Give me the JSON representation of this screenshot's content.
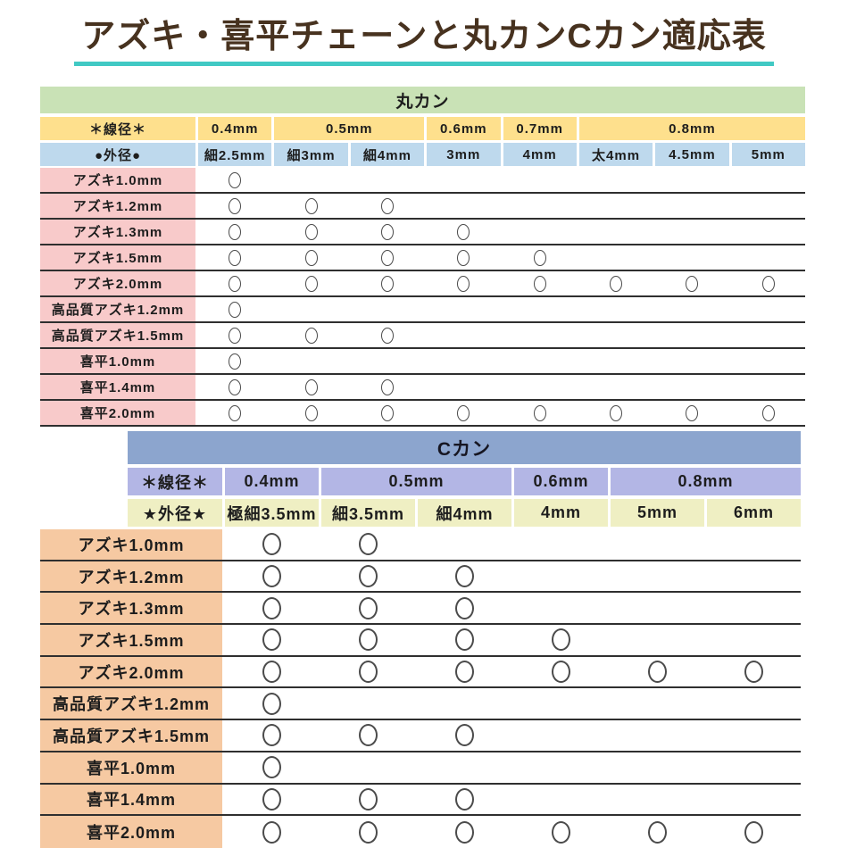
{
  "title": "アズキ・喜平チェーンと丸カンCカン適応表",
  "mark_symbol": "○",
  "colors": {
    "title_text": "#47321f",
    "title_underline": "#41c9c4",
    "marukan_header_bg": "#c9e2b6",
    "marukan_wire_row_bg": "#fee08d",
    "marukan_outer_row_bg": "#bed9ed",
    "marukan_row_label_bg": "#f8caca",
    "ckan_header_bg": "#8ca5ce",
    "ckan_wire_row_bg": "#b3b6e5",
    "ckan_outer_row_bg": "#efefc3",
    "ckan_row_label_bg": "#f6c9a2",
    "separator_line": "#2f2f2f",
    "circle_stroke": "#4b4b4b"
  },
  "chart_data": [
    {
      "type": "table",
      "title": "丸カン",
      "wire_header": "＊線径＊",
      "wire_groups": [
        {
          "label": "0.4mm",
          "span": 1
        },
        {
          "label": "0.5mm",
          "span": 2
        },
        {
          "label": "0.6mm",
          "span": 1
        },
        {
          "label": "0.7mm",
          "span": 1
        },
        {
          "label": "0.8mm",
          "span": 3
        }
      ],
      "outer_header": "●外径●",
      "columns": [
        "細2.5mm",
        "細3mm",
        "細4mm",
        "3mm",
        "4mm",
        "太4mm",
        "4.5mm",
        "5mm"
      ],
      "rows": [
        {
          "label": "アズキ1.0mm",
          "marks": [
            1,
            0,
            0,
            0,
            0,
            0,
            0,
            0
          ]
        },
        {
          "label": "アズキ1.2mm",
          "marks": [
            1,
            1,
            1,
            0,
            0,
            0,
            0,
            0
          ]
        },
        {
          "label": "アズキ1.3mm",
          "marks": [
            1,
            1,
            1,
            1,
            0,
            0,
            0,
            0
          ]
        },
        {
          "label": "アズキ1.5mm",
          "marks": [
            1,
            1,
            1,
            1,
            1,
            0,
            0,
            0
          ]
        },
        {
          "label": "アズキ2.0mm",
          "marks": [
            1,
            1,
            1,
            1,
            1,
            1,
            1,
            1
          ]
        },
        {
          "label": "高品質アズキ1.2mm",
          "marks": [
            1,
            0,
            0,
            0,
            0,
            0,
            0,
            0
          ]
        },
        {
          "label": "高品質アズキ1.5mm",
          "marks": [
            1,
            1,
            1,
            0,
            0,
            0,
            0,
            0
          ]
        },
        {
          "label": "喜平1.0mm",
          "marks": [
            1,
            0,
            0,
            0,
            0,
            0,
            0,
            0
          ]
        },
        {
          "label": "喜平1.4mm",
          "marks": [
            1,
            1,
            1,
            0,
            0,
            0,
            0,
            0
          ]
        },
        {
          "label": "喜平2.0mm",
          "marks": [
            1,
            1,
            1,
            1,
            1,
            1,
            1,
            1
          ]
        }
      ]
    },
    {
      "type": "table",
      "title": "Cカン",
      "wire_header": "＊線径＊",
      "wire_groups": [
        {
          "label": "0.4mm",
          "span": 1
        },
        {
          "label": "0.5mm",
          "span": 2
        },
        {
          "label": "0.6mm",
          "span": 1
        },
        {
          "label": "0.8mm",
          "span": 2
        }
      ],
      "outer_header": "★外径★",
      "columns": [
        "極細3.5mm",
        "細3.5mm",
        "細4mm",
        "4mm",
        "5mm",
        "6mm"
      ],
      "rows": [
        {
          "label": "アズキ1.0mm",
          "marks": [
            1,
            1,
            0,
            0,
            0,
            0
          ]
        },
        {
          "label": "アズキ1.2mm",
          "marks": [
            1,
            1,
            1,
            0,
            0,
            0
          ]
        },
        {
          "label": "アズキ1.3mm",
          "marks": [
            1,
            1,
            1,
            0,
            0,
            0
          ]
        },
        {
          "label": "アズキ1.5mm",
          "marks": [
            1,
            1,
            1,
            1,
            0,
            0
          ]
        },
        {
          "label": "アズキ2.0mm",
          "marks": [
            1,
            1,
            1,
            1,
            1,
            1
          ]
        },
        {
          "label": "高品質アズキ1.2mm",
          "marks": [
            1,
            0,
            0,
            0,
            0,
            0
          ]
        },
        {
          "label": "高品質アズキ1.5mm",
          "marks": [
            1,
            1,
            1,
            0,
            0,
            0
          ]
        },
        {
          "label": "喜平1.0mm",
          "marks": [
            1,
            0,
            0,
            0,
            0,
            0
          ]
        },
        {
          "label": "喜平1.4mm",
          "marks": [
            1,
            1,
            1,
            0,
            0,
            0
          ]
        },
        {
          "label": "喜平2.0mm",
          "marks": [
            1,
            1,
            1,
            1,
            1,
            1
          ]
        }
      ]
    }
  ]
}
